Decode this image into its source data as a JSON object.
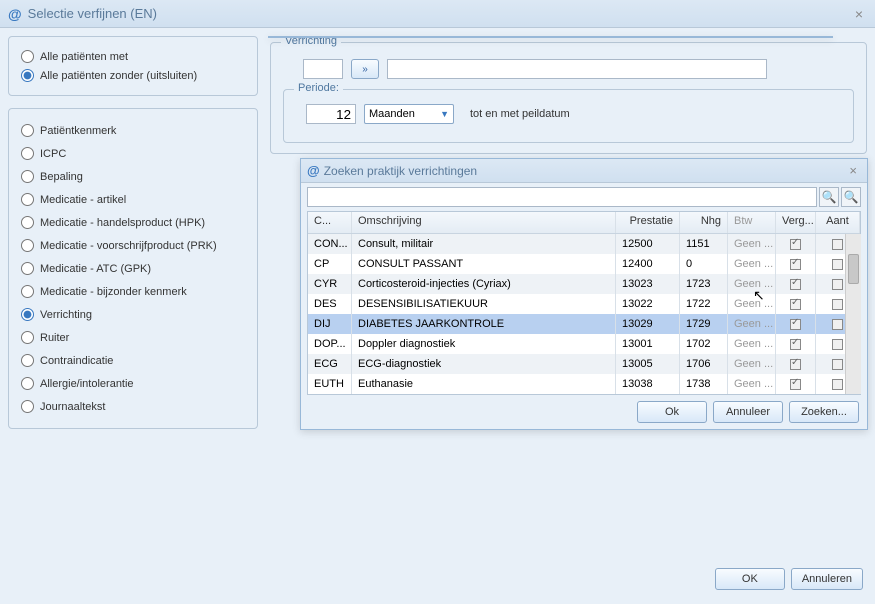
{
  "window": {
    "title": "Selectie verfijnen (EN)"
  },
  "radios1": {
    "opt1": "Alle patiënten met",
    "opt2": "Alle patiënten zonder (uitsluiten)",
    "selected": "opt2"
  },
  "filter_list": {
    "items": [
      {
        "label": "Patiëntkenmerk"
      },
      {
        "label": "ICPC"
      },
      {
        "label": "Bepaling"
      },
      {
        "label": "Medicatie - artikel"
      },
      {
        "label": "Medicatie - handelsproduct (HPK)"
      },
      {
        "label": "Medicatie - voorschrijfproduct (PRK)"
      },
      {
        "label": "Medicatie - ATC (GPK)"
      },
      {
        "label": "Medicatie - bijzonder kenmerk"
      },
      {
        "label": "Verrichting"
      },
      {
        "label": "Ruiter"
      },
      {
        "label": "Contraindicatie"
      },
      {
        "label": "Allergie/intolerantie"
      },
      {
        "label": "Journaaltekst"
      }
    ],
    "selected_index": 8
  },
  "verrichting": {
    "legend": "Verrichting",
    "chevron": "»"
  },
  "periode": {
    "legend": "Periode:",
    "value": "12",
    "unit": "Maanden",
    "suffix": "tot en met peildatum"
  },
  "dialog": {
    "title": "Zoeken praktijk verrichtingen",
    "columns": {
      "c": "C...",
      "oms": "Omschrijving",
      "pres": "Prestatie",
      "nhg": "Nhg",
      "btw": "Btw",
      "verg": "Verg...",
      "aant": "Aant"
    },
    "rows": [
      {
        "c": "CON...",
        "oms": "Consult, militair",
        "pres": "12500",
        "nhg": "1151",
        "btw": "Geen ...",
        "verg": true,
        "aant": false,
        "sel": false
      },
      {
        "c": "CP",
        "oms": "CONSULT PASSANT",
        "pres": "12400",
        "nhg": "0",
        "btw": "Geen ...",
        "verg": true,
        "aant": false,
        "sel": false
      },
      {
        "c": "CYR",
        "oms": "Corticosteroid-injecties (Cyriax)",
        "pres": "13023",
        "nhg": "1723",
        "btw": "Geen ...",
        "verg": true,
        "aant": false,
        "sel": false
      },
      {
        "c": "DES",
        "oms": "DESENSIBILISATIEKUUR",
        "pres": "13022",
        "nhg": "1722",
        "btw": "Geen ...",
        "verg": true,
        "aant": false,
        "sel": false
      },
      {
        "c": "DIJ",
        "oms": "DIABETES JAARKONTROLE",
        "pres": "13029",
        "nhg": "1729",
        "btw": "Geen ...",
        "verg": true,
        "aant": false,
        "sel": true
      },
      {
        "c": "DOP...",
        "oms": "Doppler diagnostiek",
        "pres": "13001",
        "nhg": "1702",
        "btw": "Geen ...",
        "verg": true,
        "aant": false,
        "sel": false
      },
      {
        "c": "ECG",
        "oms": "ECG-diagnostiek",
        "pres": "13005",
        "nhg": "1706",
        "btw": "Geen ...",
        "verg": true,
        "aant": false,
        "sel": false
      },
      {
        "c": "EUTH",
        "oms": "Euthanasie",
        "pres": "13038",
        "nhg": "1738",
        "btw": "Geen ...",
        "verg": true,
        "aant": false,
        "sel": false
      }
    ],
    "buttons": {
      "ok": "Ok",
      "cancel": "Annuleer",
      "search": "Zoeken..."
    }
  },
  "footer": {
    "ok": "OK",
    "cancel": "Annuleren"
  }
}
